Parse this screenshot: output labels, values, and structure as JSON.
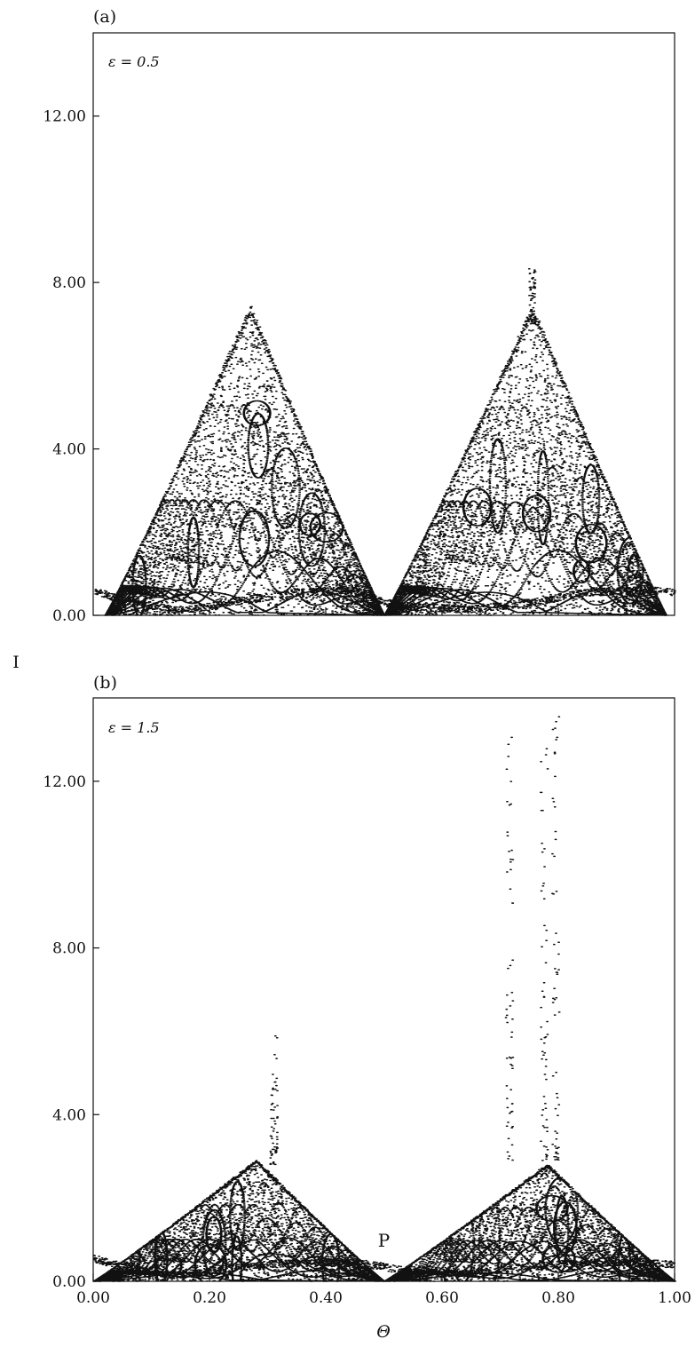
{
  "chart_data": [
    {
      "type": "scatter",
      "panel_label": "(a)",
      "annotation": "ε = 0.5",
      "xlim": [
        0,
        1
      ],
      "ylim": [
        0,
        14
      ],
      "yticks": [
        0,
        4,
        8,
        12
      ],
      "ytick_labels": [
        "0.00",
        "4.00",
        "8.00",
        "12.00"
      ],
      "xticks": [
        0.2,
        0.4,
        0.6,
        0.8
      ],
      "xtick_labels": [],
      "grid": false,
      "seed": 7,
      "density": 1.0,
      "lobes": [
        {
          "start": 0.02,
          "end": 0.5,
          "peak_x": 0.27,
          "peak_y": 7.4
        },
        {
          "start": 0.5,
          "end": 0.985,
          "peak_x": 0.755,
          "peak_y": 7.4
        }
      ],
      "spikes": [
        {
          "x": 0.755,
          "y_min": 7.0,
          "y_max": 8.35
        }
      ],
      "baseline": [
        [
          0.0,
          0.6
        ],
        [
          0.05,
          0.35
        ],
        [
          0.15,
          0.1
        ],
        [
          0.25,
          0.35
        ],
        [
          0.35,
          0.55
        ],
        [
          0.45,
          0.6
        ],
        [
          0.5,
          0.3
        ],
        [
          0.55,
          0.2
        ],
        [
          0.65,
          0.15
        ],
        [
          0.75,
          0.3
        ],
        [
          0.85,
          0.55
        ],
        [
          0.95,
          0.6
        ],
        [
          1.0,
          0.55
        ]
      ]
    },
    {
      "type": "scatter",
      "panel_label": "(b)",
      "annotation": "ε = 1.5",
      "point_label": "P",
      "point_label_x": 0.5,
      "point_label_y": 0.7,
      "xlim": [
        0,
        1
      ],
      "ylim": [
        0,
        14
      ],
      "yticks": [
        0,
        4,
        8,
        12
      ],
      "ytick_labels": [
        "0.00",
        "4.00",
        "8.00",
        "12.00"
      ],
      "xticks": [
        0.0,
        0.2,
        0.4,
        0.6,
        0.8,
        1.0
      ],
      "xtick_labels": [
        "0.00",
        "0.20",
        "0.40",
        "0.60",
        "0.80",
        "1.00"
      ],
      "grid": false,
      "seed": 21,
      "density": 0.75,
      "lobes": [
        {
          "start": 0.0,
          "end": 0.5,
          "peak_x": 0.28,
          "peak_y": 2.9
        },
        {
          "start": 0.5,
          "end": 1.0,
          "peak_x": 0.78,
          "peak_y": 2.8
        }
      ],
      "spikes": [
        {
          "x": 0.31,
          "y_min": 2.8,
          "y_max": 5.9
        },
        {
          "x": 0.715,
          "y_min": 2.9,
          "y_max": 13.4
        },
        {
          "x": 0.775,
          "y_min": 2.9,
          "y_max": 13.3
        },
        {
          "x": 0.795,
          "y_min": 2.9,
          "y_max": 13.6
        }
      ],
      "baseline": [
        [
          0.0,
          0.55
        ],
        [
          0.05,
          0.35
        ],
        [
          0.15,
          0.15
        ],
        [
          0.25,
          0.35
        ],
        [
          0.35,
          0.45
        ],
        [
          0.45,
          0.45
        ],
        [
          0.5,
          0.35
        ],
        [
          0.55,
          0.2
        ],
        [
          0.65,
          0.2
        ],
        [
          0.75,
          0.35
        ],
        [
          0.85,
          0.45
        ],
        [
          0.95,
          0.45
        ],
        [
          1.0,
          0.4
        ]
      ]
    }
  ],
  "axes": {
    "ylabel": "I",
    "xlabel": "Θ"
  }
}
